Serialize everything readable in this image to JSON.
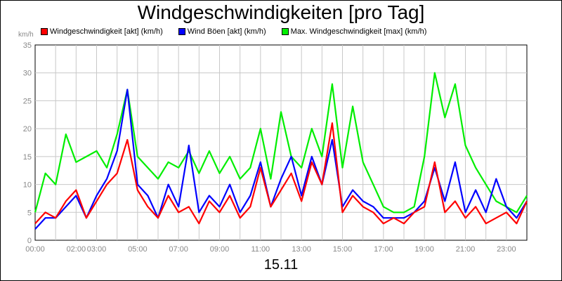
{
  "title": "Windgeschwindigkeiten [pro Tag]",
  "date_label": "15.11",
  "chart_data": {
    "type": "line",
    "title": "Windgeschwindigkeiten [pro Tag]",
    "ylabel": "km/h",
    "xlabel": "15.11",
    "ylim": [
      0,
      35
    ],
    "xlim": [
      0,
      24
    ],
    "y_ticks": [
      "0",
      "5",
      "10",
      "15",
      "20",
      "25",
      "30",
      "35"
    ],
    "x_ticks": [
      "00:00",
      "02:00",
      "03:00",
      "05:00",
      "07:00",
      "09:00",
      "11:00",
      "13:00",
      "15:00",
      "17:00",
      "19:00",
      "21:00",
      "23:00"
    ],
    "x_tick_hours": [
      0,
      2,
      3,
      5,
      7,
      9,
      11,
      13,
      15,
      17,
      19,
      21,
      23
    ],
    "grid": true,
    "legend_position": "top",
    "x": [
      0,
      0.5,
      1,
      1.5,
      2,
      2.5,
      3,
      3.5,
      4,
      4.5,
      5,
      5.5,
      6,
      6.5,
      7,
      7.5,
      8,
      8.5,
      9,
      9.5,
      10,
      10.5,
      11,
      11.5,
      12,
      12.5,
      13,
      13.5,
      14,
      14.5,
      15,
      15.5,
      16,
      16.5,
      17,
      17.5,
      18,
      18.5,
      19,
      19.5,
      20,
      20.5,
      21,
      21.5,
      22,
      22.5,
      23,
      23.5,
      24
    ],
    "series": [
      {
        "name": "Windgeschwindigkeit [akt] (km/h)",
        "color": "#ff0000",
        "values": [
          3,
          5,
          4,
          7,
          9,
          4,
          7,
          10,
          12,
          18,
          9,
          6,
          4,
          8,
          5,
          6,
          3,
          7,
          5,
          8,
          4,
          6,
          13,
          6,
          9,
          12,
          7,
          14,
          10,
          21,
          5,
          8,
          6,
          5,
          3,
          4,
          3,
          5,
          6,
          14,
          5,
          7,
          4,
          6,
          3,
          4,
          5,
          3,
          7
        ]
      },
      {
        "name": "Wind Böen [akt] (km/h)",
        "color": "#0000ff",
        "values": [
          2,
          4,
          4,
          6,
          8,
          4,
          8,
          11,
          16,
          27,
          10,
          8,
          4,
          10,
          6,
          17,
          5,
          8,
          6,
          10,
          5,
          8,
          14,
          6,
          11,
          15,
          8,
          15,
          10,
          18,
          6,
          9,
          7,
          6,
          4,
          4,
          4,
          5,
          7,
          13,
          7,
          14,
          5,
          9,
          5,
          11,
          6,
          4,
          7
        ]
      },
      {
        "name": "Max. Windgeschwindigkeit [max] (km/h)",
        "color": "#00ee00",
        "values": [
          5,
          12,
          10,
          19,
          14,
          15,
          16,
          13,
          19,
          27,
          15,
          13,
          11,
          14,
          13,
          16,
          12,
          16,
          12,
          15,
          11,
          13,
          20,
          11,
          23,
          15,
          13,
          20,
          15,
          28,
          13,
          24,
          14,
          10,
          6,
          5,
          5,
          6,
          15,
          30,
          22,
          28,
          17,
          13,
          10,
          7,
          6,
          5,
          8
        ]
      }
    ]
  }
}
